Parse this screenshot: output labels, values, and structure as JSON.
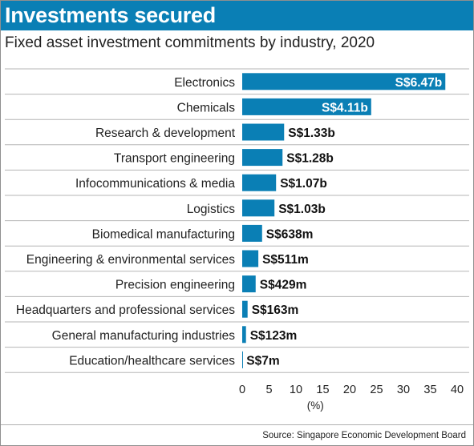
{
  "header": {
    "title": "Investments secured",
    "subtitle": "Fixed asset investment commitments by industry, 2020"
  },
  "footer": {
    "source": "Source: Singapore Economic Development Board"
  },
  "colors": {
    "bar": "#0a7fb5",
    "title_band": "#0a7fb5",
    "inner_label": "#ffffff",
    "outer_label": "#111111"
  },
  "chart_data": {
    "type": "bar",
    "orientation": "horizontal",
    "categories": [
      "Electronics",
      "Chemicals",
      "Research & development",
      "Transport engineering",
      "Infocommunications & media",
      "Logistics",
      "Biomedical manufacturing",
      "Engineering & environmental services",
      "Precision engineering",
      "Headquarters and professional services",
      "General manufacturing industries",
      "Education/healthcare services"
    ],
    "values": [
      37.8,
      24.0,
      7.8,
      7.5,
      6.3,
      6.0,
      3.7,
      3.0,
      2.5,
      1.0,
      0.7,
      0.04
    ],
    "data_labels": [
      "S$6.47b",
      "S$4.11b",
      "S$1.33b",
      "S$1.28b",
      "S$1.07b",
      "S$1.03b",
      "S$638m",
      "S$511m",
      "S$429m",
      "S$163m",
      "S$123m",
      "S$7m"
    ],
    "label_inside": [
      true,
      true,
      false,
      false,
      false,
      false,
      false,
      false,
      false,
      false,
      false,
      false
    ],
    "xlim": [
      0,
      40
    ],
    "xticks": [
      0,
      5,
      10,
      15,
      20,
      25,
      30,
      35,
      40
    ],
    "xlabel": "(%)",
    "grid": "horizontal row separators"
  }
}
